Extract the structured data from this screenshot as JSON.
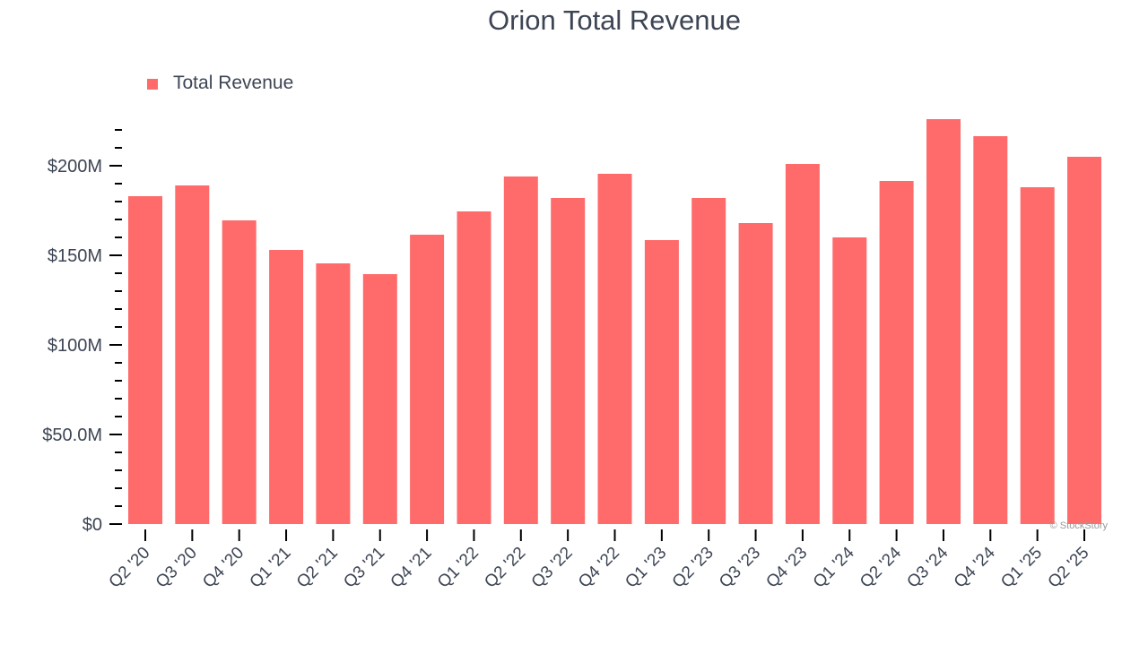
{
  "chart_data": {
    "type": "bar",
    "title": "Orion Total Revenue",
    "xlabel": "",
    "ylabel": "",
    "legend": {
      "entries": [
        "Total Revenue"
      ],
      "placement": "top-left"
    },
    "watermark": "© StockStory",
    "color": "#ff6b6b",
    "text_color": "#3d4554",
    "ylim": [
      0,
      229
    ],
    "units": "$M",
    "y_major_ticks": [
      0,
      50,
      100,
      150,
      200
    ],
    "y_tick_labels": [
      "$0",
      "$50.0M",
      "$100M",
      "$150M",
      "$200M"
    ],
    "y_minor_step": 10,
    "grid": false,
    "categories": [
      "Q2 '20",
      "Q3 '20",
      "Q4 '20",
      "Q1 '21",
      "Q2 '21",
      "Q3 '21",
      "Q4 '21",
      "Q1 '22",
      "Q2 '22",
      "Q3 '22",
      "Q4 '22",
      "Q1 '23",
      "Q2 '23",
      "Q3 '23",
      "Q4 '23",
      "Q1 '24",
      "Q2 '24",
      "Q3 '24",
      "Q4 '24",
      "Q1 '25",
      "Q2 '25"
    ],
    "series": [
      {
        "name": "Total Revenue",
        "values": [
          183,
          189,
          169.5,
          153,
          145.5,
          139.5,
          161.5,
          174.5,
          194,
          182,
          195.5,
          158.5,
          182,
          168,
          201,
          160,
          191.5,
          226,
          216.5,
          188,
          205
        ]
      }
    ]
  }
}
